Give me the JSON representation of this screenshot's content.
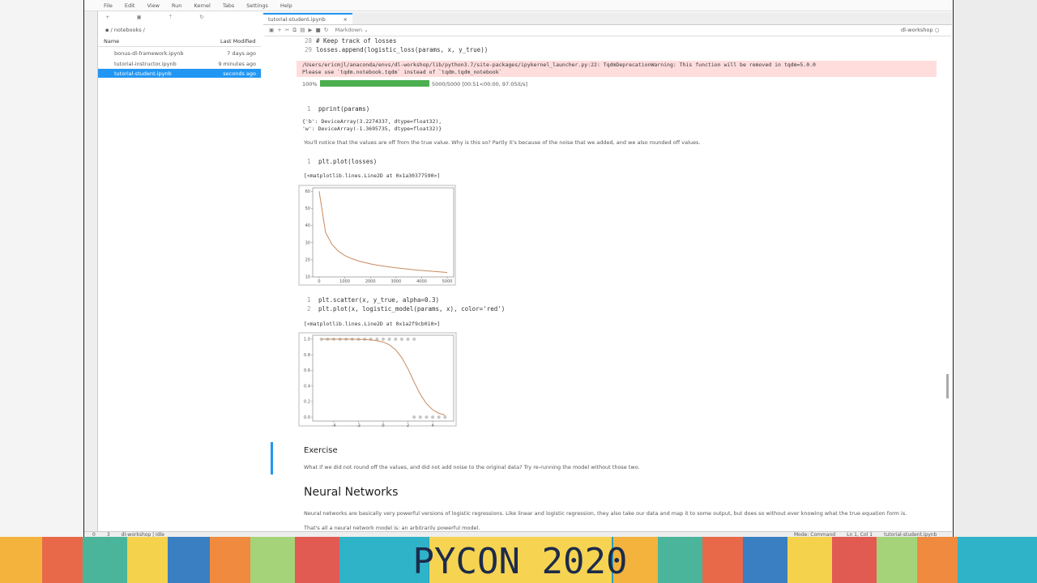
{
  "menu": [
    "File",
    "Edit",
    "View",
    "Run",
    "Kernel",
    "Tabs",
    "Settings",
    "Help"
  ],
  "file_browser": {
    "path": "/ notebooks /",
    "columns": [
      "Name",
      "Last Modified"
    ],
    "files": [
      {
        "name": "bonus-dl-framework.ipynb",
        "modified": "7 days ago"
      },
      {
        "name": "tutorial-instructor.ipynb",
        "modified": "9 minutes ago"
      },
      {
        "name": "tutorial-student.ipynb",
        "modified": "seconds ago"
      }
    ]
  },
  "notebook": {
    "tab": "tutorial-student.ipynb",
    "cell_type": "Markdown",
    "kernel": "dl-workshop",
    "code_top": [
      {
        "n": 28,
        "code": "# Keep track of losses"
      },
      {
        "n": 29,
        "code": "losses.append(logistic_loss(params, x, y_true))"
      }
    ],
    "warning": [
      "/Users/ericmjl/anaconda/envs/dl-workshop/lib/python3.7/site-packages/ipykernel_launcher.py:22: TqdmDeprecationWarning: This function will be removed in tqdm=5.0.0",
      "Please use `tqdm.notebook.tqdm` instead of `tqdm.tqdm_notebook`"
    ],
    "progress": {
      "percent": "100%",
      "text": "5000/5000 [00:51<00:00, 97.05it/s]"
    },
    "cell_pprint": {
      "n": 1,
      "code": "pprint(params)",
      "output": [
        "{'b': DeviceArray(3.2274337, dtype=float32),",
        " 'w': DeviceArray(-1.3695735, dtype=float32)}"
      ]
    },
    "note": "You'll notice that the values are off from the true value. Why is this so? Partly it's because of the noise that we added, and we also rounded off values.",
    "cell_plot": {
      "n": 1,
      "code": "plt.plot(losses)",
      "output": "[<matplotlib.lines.Line2D at 0x1a30377590>]"
    },
    "cell_scatter": {
      "lines": [
        {
          "n": 1,
          "code": "plt.scatter(x, y_true, alpha=0.3)"
        },
        {
          "n": 2,
          "code": "plt.plot(x, logistic_model(params, x), color='red')"
        }
      ],
      "output": "[<matplotlib.lines.Line2D at 0x1a2f9cb010>]"
    },
    "exercise": {
      "title": "Exercise",
      "text": "What if we did not round off the values, and did not add noise to the original data? Try re-running the model without those two."
    },
    "section": {
      "title": "Neural Networks",
      "text": "Neural networks are basically very powerful versions of logistic regressions. Like linear and logistic regression, they also take our data and map it to some output, but does so without ever knowing what the true equation form is.",
      "text2": "That's all a neural network model is: an arbitrarily powerful model."
    }
  },
  "plots": [
    {
      "type": "line",
      "xlim": [
        -250,
        5250
      ],
      "ylim": [
        10,
        62
      ],
      "xticks": [
        0,
        1000,
        2000,
        3000,
        4000,
        5000
      ],
      "yticks": [
        10,
        20,
        30,
        40,
        50,
        60
      ],
      "color": "#c98a5c",
      "x": [
        0,
        250,
        500,
        750,
        1000,
        1250,
        1500,
        1750,
        2000,
        2250,
        2500,
        2750,
        3000,
        3250,
        3500,
        3750,
        4000,
        4250,
        4500,
        4750,
        5000
      ],
      "y": [
        60,
        36,
        29,
        25,
        22.5,
        20.8,
        19.5,
        18.5,
        17.6,
        16.9,
        16.3,
        15.8,
        15.3,
        14.9,
        14.5,
        14.1,
        13.8,
        13.5,
        13.2,
        12.9,
        12.6
      ]
    },
    {
      "type": "scatter",
      "xlim": [
        -5.7,
        5.7
      ],
      "ylim": [
        -0.05,
        1.05
      ],
      "xticks": [
        -4,
        -2,
        0,
        2,
        4
      ],
      "yticks": [
        {
          "value": 0,
          "label": "0.0"
        },
        {
          "value": 0.2,
          "label": "0.2"
        },
        {
          "value": 0.4,
          "label": "0.4"
        },
        {
          "value": 0.6,
          "label": "0.6"
        },
        {
          "value": 0.8,
          "label": "0.8"
        },
        {
          "value": 1,
          "label": "1.0"
        }
      ],
      "scatter_color": "#8a8f88",
      "line_color": "#c98a5c",
      "scatter_x": [
        -5,
        -4.5,
        -4,
        -3.5,
        -3,
        -2.5,
        -2,
        -1.5,
        -1,
        -0.5,
        0,
        0.5,
        1,
        1.5,
        2,
        2.5,
        2.5,
        3,
        3.5,
        4,
        4.5,
        5
      ],
      "scatter_y": [
        1,
        1,
        1,
        1,
        1,
        1,
        1,
        1,
        1,
        1,
        1,
        1,
        1,
        1,
        1,
        1,
        0,
        0,
        0,
        0,
        0,
        0
      ],
      "x": [
        -5,
        -4.5,
        -4,
        -3.5,
        -3,
        -2.5,
        -2,
        -1.5,
        -1,
        -0.5,
        0,
        0.5,
        1,
        1.5,
        2,
        2.5,
        3,
        3.5,
        4,
        4.5,
        5
      ],
      "y": [
        1,
        1,
        1,
        1,
        0.999,
        0.999,
        0.997,
        0.995,
        0.99,
        0.98,
        0.962,
        0.927,
        0.865,
        0.763,
        0.62,
        0.45,
        0.293,
        0.172,
        0.095,
        0.05,
        0.026
      ]
    }
  ],
  "status_bar": {
    "left": [
      "0",
      "3",
      "dl-workshop | Idle"
    ],
    "right": [
      "Mode: Command",
      "Ln 1, Col 1",
      "tutorial-student.ipynb"
    ]
  },
  "banner": "PYCON 2020"
}
